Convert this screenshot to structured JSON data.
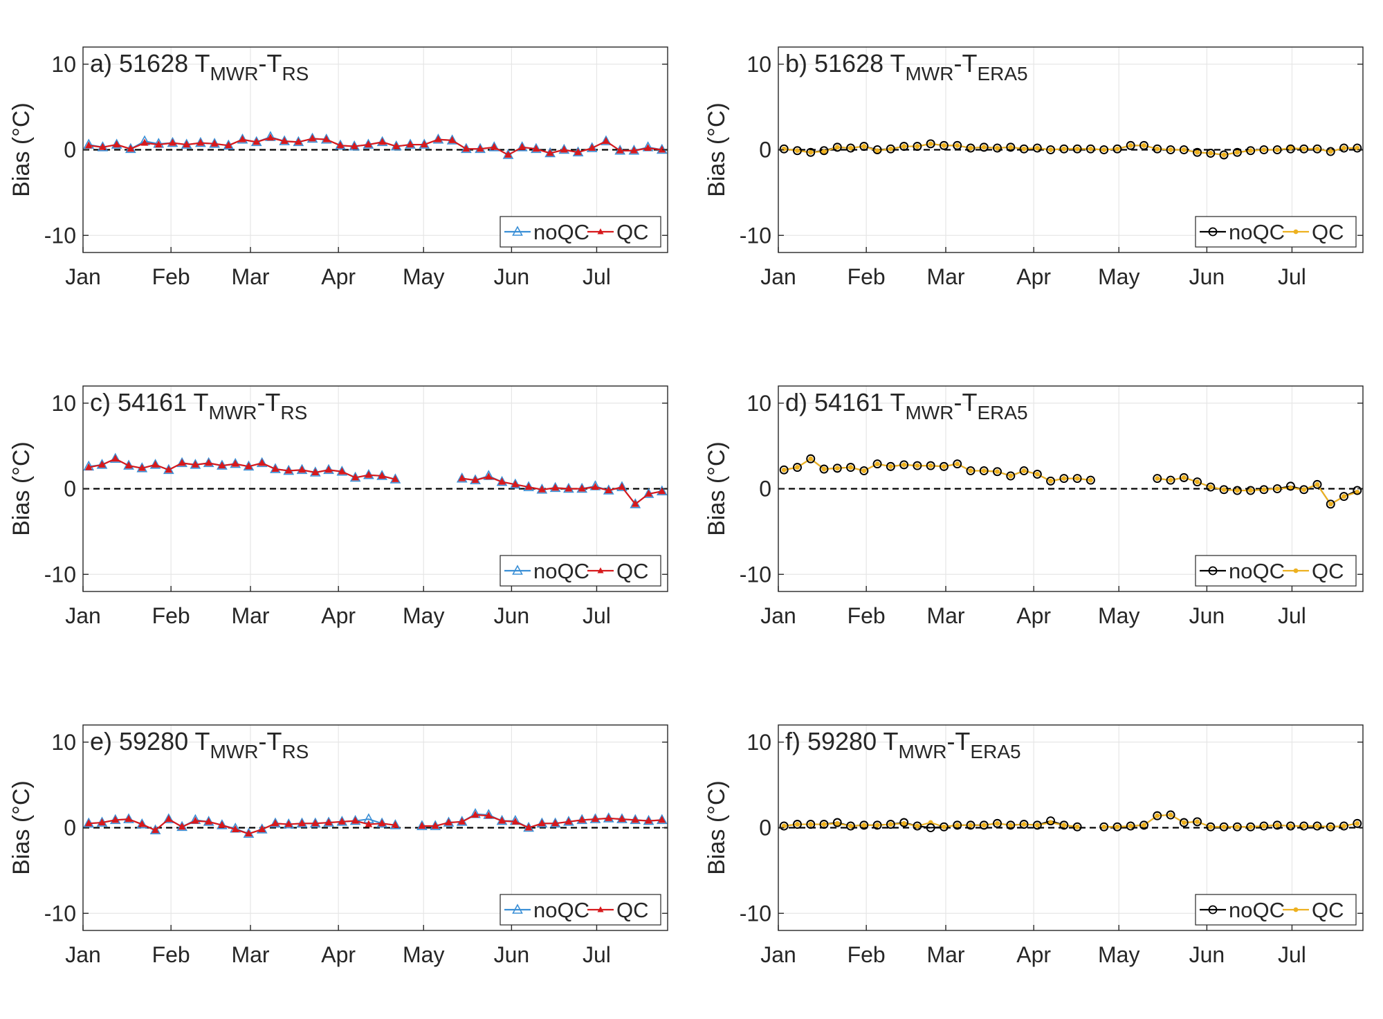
{
  "colors": {
    "background": "#ffffff",
    "axis": "#262626",
    "grid": "#e6e6e6",
    "zero_line": "#000000",
    "noqc_blue": "#3a8fd6",
    "qc_red": "#d7191c",
    "noqc_black": "#000000",
    "qc_orange": "#edb120"
  },
  "shared": {
    "ylabel": "Bias (°C)",
    "months": [
      "Jan",
      "Feb",
      "Mar",
      "Apr",
      "May",
      "Jun",
      "Jul"
    ],
    "yticks": [
      "10",
      "0",
      "-10"
    ],
    "ylim": [
      -12,
      12
    ],
    "xlim": [
      0,
      206
    ]
  },
  "chart_data": [
    {
      "id": "a",
      "type": "line",
      "title_prefix": "a) 51628 T",
      "title_sub1": "MWR",
      "title_mid": "-T",
      "title_sub2": "RS",
      "legend": [
        "noQC",
        "QC"
      ],
      "marker": "triangle",
      "colors": [
        "noqc_blue",
        "qc_red"
      ],
      "series": [
        {
          "name": "noQC",
          "values": [
            0.6,
            0.3,
            0.6,
            0.1,
            1.0,
            0.7,
            0.8,
            0.6,
            0.8,
            0.7,
            0.5,
            1.2,
            0.9,
            1.5,
            1.0,
            0.9,
            1.3,
            1.2,
            0.5,
            0.4,
            0.6,
            0.9,
            0.4,
            0.6,
            0.6,
            1.2,
            1.1,
            0.1,
            0.1,
            0.3,
            -0.6,
            0.3,
            0.1,
            -0.4,
            0.0,
            -0.3,
            0.2,
            1.0,
            -0.1,
            -0.1,
            0.3,
            0.0
          ]
        },
        {
          "name": "QC",
          "values": [
            0.5,
            0.3,
            0.6,
            0.1,
            0.8,
            0.6,
            0.8,
            0.6,
            0.8,
            0.7,
            0.5,
            1.2,
            0.9,
            1.4,
            1.0,
            0.9,
            1.3,
            1.2,
            0.5,
            0.4,
            0.6,
            0.9,
            0.4,
            0.6,
            0.6,
            1.2,
            1.1,
            0.1,
            0.1,
            0.3,
            -0.6,
            0.3,
            0.1,
            -0.4,
            0.0,
            -0.3,
            0.2,
            1.0,
            -0.1,
            -0.1,
            0.2,
            0.0
          ]
        }
      ]
    },
    {
      "id": "b",
      "type": "line",
      "title_prefix": "b) 51628 T",
      "title_sub1": "MWR",
      "title_mid": "-T",
      "title_sub2": "ERA5",
      "legend": [
        "noQC",
        "QC"
      ],
      "marker": "circle",
      "colors": [
        "noqc_black",
        "qc_orange"
      ],
      "series": [
        {
          "name": "noQC",
          "values": [
            0.1,
            -0.1,
            -0.3,
            -0.1,
            0.3,
            0.2,
            0.4,
            0.0,
            0.1,
            0.4,
            0.4,
            0.7,
            0.5,
            0.5,
            0.2,
            0.3,
            0.2,
            0.3,
            0.1,
            0.2,
            0.0,
            0.1,
            0.1,
            0.1,
            0.0,
            0.1,
            0.5,
            0.5,
            0.1,
            0.0,
            0.0,
            -0.3,
            -0.4,
            -0.6,
            -0.3,
            -0.1,
            0.0,
            0.0,
            0.1,
            0.1,
            0.1,
            -0.2,
            0.2,
            0.2
          ]
        },
        {
          "name": "QC",
          "values": [
            0.1,
            -0.1,
            -0.3,
            -0.2,
            0.3,
            0.2,
            0.4,
            -0.1,
            0.1,
            0.4,
            0.4,
            0.7,
            0.5,
            0.5,
            0.2,
            0.3,
            0.2,
            0.3,
            0.1,
            0.2,
            0.0,
            0.1,
            0.1,
            0.1,
            0.0,
            0.1,
            0.5,
            0.5,
            0.1,
            0.0,
            0.0,
            -0.3,
            -0.4,
            -0.6,
            -0.3,
            -0.1,
            0.0,
            0.0,
            0.2,
            0.1,
            0.1,
            -0.2,
            0.2,
            0.2
          ]
        }
      ]
    },
    {
      "id": "c",
      "type": "line",
      "title_prefix": "c) 54161 T",
      "title_sub1": "MWR",
      "title_mid": "-T",
      "title_sub2": "RS",
      "legend": [
        "noQC",
        "QC"
      ],
      "marker": "triangle",
      "colors": [
        "noqc_blue",
        "qc_red"
      ],
      "series": [
        {
          "name": "noQC",
          "values": [
            2.6,
            2.8,
            3.5,
            2.7,
            2.4,
            2.8,
            2.2,
            3.0,
            2.8,
            3.0,
            2.7,
            2.9,
            2.6,
            3.0,
            2.3,
            2.1,
            2.2,
            1.9,
            2.2,
            2.0,
            1.3,
            1.6,
            1.5,
            1.1,
            null,
            null,
            null,
            null,
            1.2,
            1.0,
            1.5,
            0.8,
            0.5,
            0.2,
            -0.1,
            0.1,
            0.0,
            0.0,
            0.3,
            -0.2,
            0.2,
            -1.8,
            -0.6,
            -0.3
          ]
        },
        {
          "name": "QC",
          "values": [
            2.5,
            2.8,
            3.5,
            2.7,
            2.4,
            2.8,
            2.2,
            3.0,
            2.8,
            3.0,
            2.7,
            2.9,
            2.6,
            3.0,
            2.3,
            2.1,
            2.2,
            1.9,
            2.2,
            2.0,
            1.3,
            1.6,
            1.5,
            1.1,
            null,
            null,
            null,
            null,
            1.2,
            1.0,
            1.4,
            0.8,
            0.5,
            0.2,
            -0.1,
            0.1,
            0.0,
            0.0,
            0.2,
            -0.2,
            0.2,
            -1.8,
            -0.6,
            -0.3
          ]
        }
      ]
    },
    {
      "id": "d",
      "type": "line",
      "title_prefix": "d) 54161 T",
      "title_sub1": "MWR",
      "title_mid": "-T",
      "title_sub2": "ERA5",
      "legend": [
        "noQC",
        "QC"
      ],
      "marker": "circle",
      "colors": [
        "noqc_black",
        "qc_orange"
      ],
      "series": [
        {
          "name": "noQC",
          "values": [
            2.2,
            2.5,
            3.5,
            2.3,
            2.4,
            2.5,
            2.1,
            2.9,
            2.6,
            2.8,
            2.7,
            2.7,
            2.6,
            2.9,
            2.1,
            2.1,
            2.0,
            1.5,
            2.1,
            1.7,
            0.9,
            1.2,
            1.2,
            1.0,
            null,
            null,
            null,
            null,
            1.2,
            1.0,
            1.3,
            0.8,
            0.2,
            -0.1,
            -0.2,
            -0.2,
            -0.1,
            0.0,
            0.3,
            -0.1,
            0.5,
            -1.8,
            -0.9,
            -0.2
          ]
        },
        {
          "name": "QC",
          "values": [
            2.2,
            2.5,
            3.5,
            2.3,
            2.4,
            2.5,
            2.1,
            2.9,
            2.6,
            2.8,
            2.7,
            2.7,
            2.6,
            2.9,
            2.1,
            2.1,
            2.0,
            1.5,
            2.1,
            1.7,
            0.9,
            1.2,
            1.2,
            1.0,
            null,
            null,
            null,
            null,
            1.2,
            1.0,
            1.3,
            0.8,
            0.2,
            -0.1,
            -0.2,
            -0.2,
            -0.1,
            0.0,
            0.1,
            -0.1,
            0.5,
            -1.8,
            -0.9,
            -0.4
          ]
        }
      ]
    },
    {
      "id": "e",
      "type": "line",
      "title_prefix": "e) 59280 T",
      "title_sub1": "MWR",
      "title_mid": "-T",
      "title_sub2": "RS",
      "legend": [
        "noQC",
        "QC"
      ],
      "marker": "triangle",
      "colors": [
        "noqc_blue",
        "qc_red"
      ],
      "series": [
        {
          "name": "noQC",
          "values": [
            0.5,
            0.6,
            0.9,
            1.0,
            0.4,
            -0.3,
            1.0,
            0.1,
            0.9,
            0.7,
            0.3,
            -0.1,
            -0.7,
            -0.2,
            0.5,
            0.4,
            0.5,
            0.5,
            0.6,
            0.7,
            0.8,
            1.0,
            0.5,
            0.3,
            null,
            0.2,
            0.2,
            0.6,
            0.7,
            1.6,
            1.5,
            0.8,
            0.8,
            0.0,
            0.5,
            0.5,
            0.7,
            0.9,
            1.0,
            1.1,
            1.0,
            0.9,
            0.8,
            0.9
          ]
        },
        {
          "name": "QC",
          "values": [
            0.5,
            0.6,
            0.9,
            1.0,
            0.4,
            -0.3,
            1.0,
            0.1,
            0.8,
            0.7,
            0.3,
            -0.2,
            -0.7,
            -0.2,
            0.5,
            0.4,
            0.5,
            0.5,
            0.6,
            0.7,
            0.8,
            0.4,
            0.5,
            0.3,
            null,
            0.2,
            0.2,
            0.6,
            0.7,
            1.5,
            1.4,
            0.8,
            0.7,
            0.0,
            0.5,
            0.5,
            0.7,
            0.9,
            1.0,
            1.1,
            1.0,
            0.9,
            0.8,
            0.9
          ]
        }
      ]
    },
    {
      "id": "f",
      "type": "line",
      "title_prefix": "f) 59280 T",
      "title_sub1": "MWR",
      "title_mid": "-T",
      "title_sub2": "ERA5",
      "legend": [
        "noQC",
        "QC"
      ],
      "marker": "circle",
      "colors": [
        "noqc_black",
        "qc_orange"
      ],
      "series": [
        {
          "name": "noQC",
          "values": [
            0.2,
            0.4,
            0.4,
            0.4,
            0.6,
            0.2,
            0.3,
            0.3,
            0.4,
            0.6,
            0.2,
            0.0,
            0.1,
            0.3,
            0.3,
            0.3,
            0.5,
            0.3,
            0.4,
            0.3,
            0.8,
            0.3,
            0.1,
            null,
            0.1,
            0.1,
            0.2,
            0.3,
            1.4,
            1.5,
            0.6,
            0.7,
            0.1,
            0.1,
            0.1,
            0.1,
            0.2,
            0.3,
            0.2,
            0.2,
            0.2,
            0.1,
            0.2,
            0.5
          ]
        },
        {
          "name": "QC",
          "values": [
            0.2,
            0.4,
            0.4,
            0.4,
            0.5,
            0.2,
            0.3,
            0.3,
            0.4,
            0.5,
            0.2,
            0.6,
            0.1,
            0.3,
            0.3,
            0.3,
            0.5,
            0.3,
            0.4,
            0.3,
            0.6,
            0.3,
            0.1,
            null,
            0.1,
            0.1,
            0.2,
            0.3,
            1.4,
            1.5,
            0.6,
            0.7,
            0.1,
            0.1,
            0.1,
            0.1,
            0.2,
            0.3,
            0.2,
            0.2,
            0.2,
            0.1,
            0.2,
            0.5
          ]
        }
      ]
    }
  ]
}
